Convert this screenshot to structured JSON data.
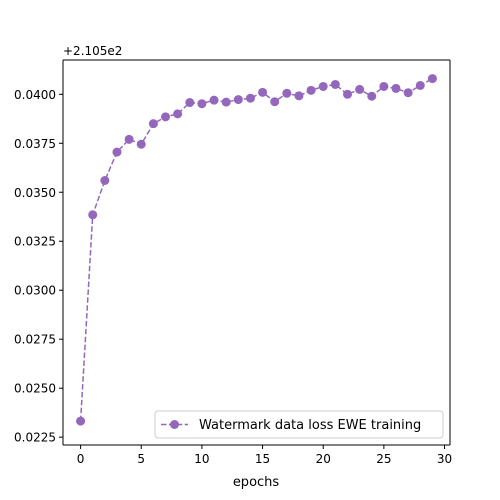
{
  "chart_data": {
    "type": "line",
    "title": "",
    "xlabel": "epochs",
    "ylabel": "",
    "offset_label": "+2.105e2",
    "xlim": [
      -1.45,
      30.45
    ],
    "ylim": [
      0.0221,
      0.04175
    ],
    "xticks": [
      0,
      5,
      10,
      15,
      20,
      25,
      30
    ],
    "xtick_labels": [
      "0",
      "5",
      "10",
      "15",
      "20",
      "25",
      "30"
    ],
    "yticks": [
      0.0225,
      0.025,
      0.0275,
      0.03,
      0.0325,
      0.035,
      0.0375,
      0.04
    ],
    "ytick_labels": [
      "0.0225",
      "0.0250",
      "0.0275",
      "0.0300",
      "0.0325",
      "0.0350",
      "0.0375",
      "0.0400"
    ],
    "grid": false,
    "legend_position": "lower-right",
    "series": [
      {
        "name": "Watermark data loss EWE training",
        "color": "#9467bd",
        "line_style": "dashed",
        "marker": "circle",
        "x": [
          0,
          1,
          2,
          3,
          4,
          5,
          6,
          7,
          8,
          9,
          10,
          11,
          12,
          13,
          14,
          15,
          16,
          17,
          18,
          19,
          20,
          21,
          22,
          23,
          24,
          25,
          26,
          27,
          28,
          29
        ],
        "y": [
          0.02332,
          0.03385,
          0.0356,
          0.03705,
          0.0377,
          0.03745,
          0.0385,
          0.03885,
          0.039,
          0.03958,
          0.03952,
          0.0397,
          0.0396,
          0.03973,
          0.0398,
          0.0401,
          0.03962,
          0.04005,
          0.03992,
          0.0402,
          0.0404,
          0.0405,
          0.04,
          0.04025,
          0.0399,
          0.0404,
          0.0403,
          0.04008,
          0.04045,
          0.0408
        ]
      }
    ]
  }
}
